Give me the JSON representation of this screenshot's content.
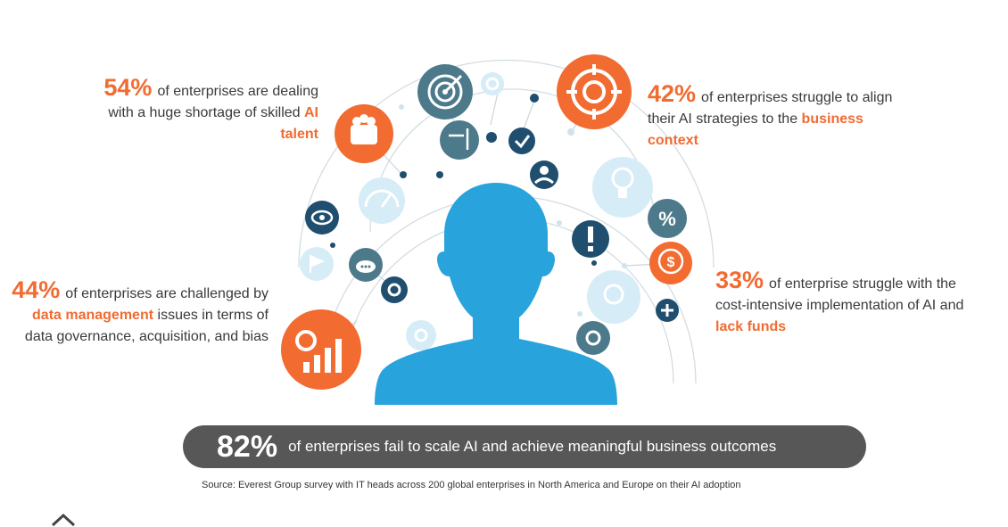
{
  "stats": {
    "s54": {
      "percent": "54%",
      "pre": "of enterprises are dealing with a huge shortage of skilled ",
      "highlight": "AI talent"
    },
    "s44": {
      "percent": "44%",
      "pre": "of enterprises are challenged by ",
      "highlight": "data management",
      "post": " issues in terms of data governance, acquisition, and bias"
    },
    "s42": {
      "percent": "42%",
      "pre": "of enterprises struggle to align their AI strategies to the ",
      "highlight": "business context"
    },
    "s33": {
      "percent": "33%",
      "pre": "of enterprise struggle with the cost-intensive implementation of AI and ",
      "highlight": "lack funds"
    }
  },
  "banner": {
    "percent": "82%",
    "text": "of enterprises fail to scale AI and achieve meaningful business outcomes"
  },
  "source": "Source: Everest Group survey with IT heads across 200 global enterprises in North America and Europe on their AI adoption",
  "colors": {
    "orange": "#f26b30",
    "teal": "#4d7a8a",
    "navy": "#1f4e6e",
    "blue": "#29a3dc",
    "light": "#d6ecf7",
    "banner": "#575757"
  },
  "icons": [
    "target-icon",
    "crosshair-icon",
    "team-icon",
    "speedometer-icon",
    "eye-icon",
    "cloud-chat-icon",
    "gear-icon",
    "settings-chart-icon",
    "lightbulb-icon",
    "percent-icon",
    "dollar-icon",
    "alert-icon",
    "check-icon",
    "plus-icon",
    "flag-icon",
    "person-head-icon"
  ]
}
